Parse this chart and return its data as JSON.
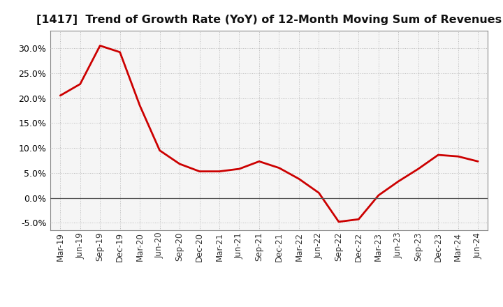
{
  "title": "[1417]  Trend of Growth Rate (YoY) of 12-Month Moving Sum of Revenues",
  "line_color": "#cc0000",
  "line_width": 2.0,
  "background_color": "#ffffff",
  "plot_bg_color": "#f5f5f5",
  "grid_color": "#bbbbbb",
  "spine_color": "#888888",
  "zero_line_color": "#555555",
  "ylim": [
    -0.065,
    0.335
  ],
  "yticks": [
    -0.05,
    0.0,
    0.05,
    0.1,
    0.15,
    0.2,
    0.25,
    0.3
  ],
  "x_labels": [
    "Mar-19",
    "Jun-19",
    "Sep-19",
    "Dec-19",
    "Mar-20",
    "Jun-20",
    "Sep-20",
    "Dec-20",
    "Mar-21",
    "Jun-21",
    "Sep-21",
    "Dec-21",
    "Mar-22",
    "Jun-22",
    "Sep-22",
    "Dec-22",
    "Mar-23",
    "Jun-23",
    "Sep-23",
    "Dec-23",
    "Mar-24",
    "Jun-24"
  ],
  "y_values": [
    0.205,
    0.228,
    0.305,
    0.292,
    0.185,
    0.095,
    0.068,
    0.053,
    0.053,
    0.058,
    0.073,
    0.06,
    0.038,
    0.01,
    -0.048,
    -0.043,
    0.005,
    0.033,
    0.058,
    0.086,
    0.083,
    0.073
  ],
  "title_fontsize": 11.5,
  "tick_fontsize": 9,
  "xlabel_fontsize": 8.5
}
